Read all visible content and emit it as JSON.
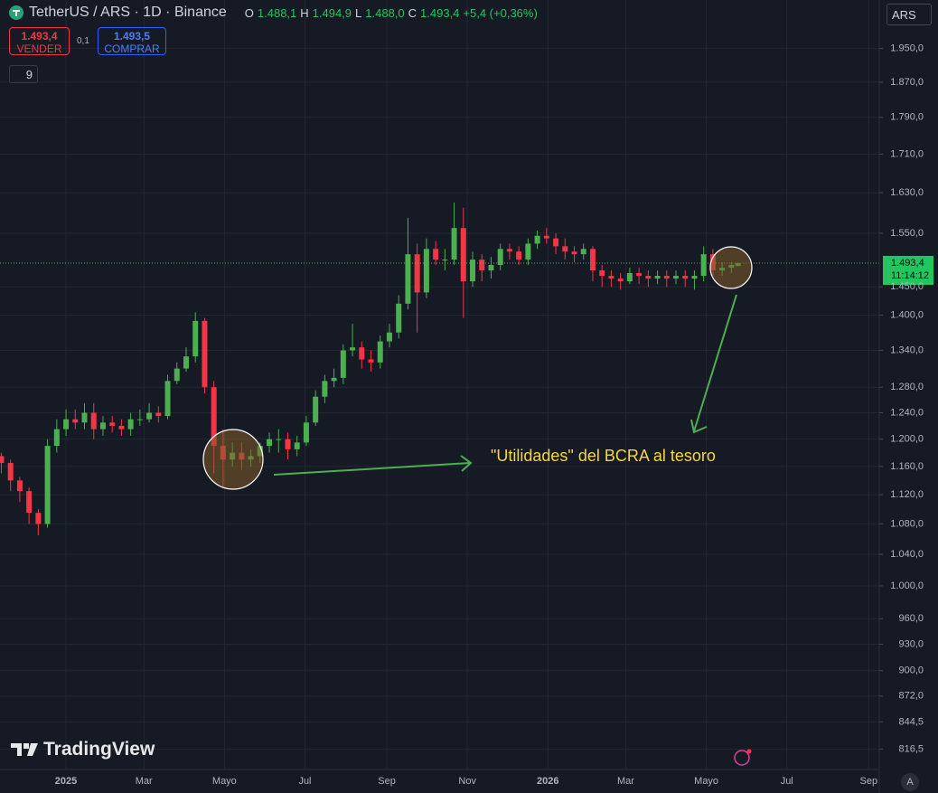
{
  "toolbar": {
    "symbol": "TetherUS / ARS · 1D · Binance",
    "o_label": "O",
    "o_value": "1.488,1",
    "h_label": "H",
    "h_value": "1.494,9",
    "l_label": "L",
    "l_value": "1.488,0",
    "c_label": "C",
    "c_value": "1.493,4",
    "change": "+5,4 (+0,36%)",
    "sell_price": "1.493,4",
    "sell_label": "VENDER",
    "spread": "0,1",
    "buy_price": "1.493,5",
    "buy_label": "COMPRAR",
    "indicators": "9",
    "currency": "ARS",
    "brand": "TradingView",
    "auto": "A"
  },
  "chart_data": {
    "type": "candlestick",
    "log_scale": true,
    "grid": true,
    "up_color": "#4caf50",
    "down_color": "#f23645",
    "annotation": "\"Utilidades\" del BCRA al tesoro",
    "last_price_label": "1.493,4",
    "countdown": "11:14:12",
    "x": [
      -49,
      -42,
      -35,
      -28,
      -21,
      -14,
      -7,
      0,
      7,
      14,
      21,
      28,
      35,
      42,
      49,
      56,
      63,
      70,
      77,
      84,
      91,
      98,
      105,
      112,
      119,
      126,
      133,
      140,
      147,
      154,
      161,
      168,
      175,
      182,
      189,
      196,
      203,
      210,
      217,
      224,
      231,
      238,
      245,
      252,
      259,
      266,
      273,
      280,
      287,
      294,
      301,
      308,
      315,
      322,
      329,
      336,
      343,
      350,
      357,
      364,
      371,
      378,
      385,
      392,
      399,
      406,
      413,
      420,
      427,
      434,
      441,
      448,
      455,
      462,
      469,
      476,
      483,
      490,
      497,
      504,
      509
    ],
    "open": [
      1175,
      1165,
      1140,
      1125,
      1095,
      1080,
      1190,
      1215,
      1230,
      1225,
      1240,
      1215,
      1225,
      1220,
      1215,
      1230,
      1230,
      1240,
      1235,
      1290,
      1310,
      1330,
      1390,
      1280,
      1190,
      1170,
      1180,
      1170,
      1175,
      1190,
      1200,
      1200,
      1185,
      1195,
      1225,
      1265,
      1290,
      1295,
      1340,
      1345,
      1325,
      1320,
      1355,
      1370,
      1420,
      1510,
      1440,
      1520,
      1500,
      1500,
      1560,
      1460,
      1500,
      1480,
      1490,
      1520,
      1515,
      1500,
      1530,
      1545,
      1540,
      1525,
      1515,
      1510,
      1520,
      1480,
      1470,
      1465,
      1460,
      1475,
      1470,
      1465,
      1470,
      1465,
      1470,
      1465,
      1470,
      1510,
      1480,
      1485,
      1488.1
    ],
    "high": [
      1180,
      1170,
      1145,
      1130,
      1100,
      1200,
      1230,
      1245,
      1245,
      1255,
      1255,
      1235,
      1235,
      1230,
      1240,
      1245,
      1255,
      1250,
      1300,
      1320,
      1345,
      1405,
      1395,
      1290,
      1215,
      1195,
      1195,
      1185,
      1195,
      1210,
      1215,
      1210,
      1205,
      1235,
      1275,
      1300,
      1310,
      1350,
      1385,
      1355,
      1340,
      1365,
      1385,
      1435,
      1580,
      1530,
      1540,
      1535,
      1520,
      1610,
      1600,
      1515,
      1510,
      1505,
      1530,
      1530,
      1525,
      1540,
      1555,
      1560,
      1550,
      1540,
      1525,
      1530,
      1525,
      1490,
      1480,
      1475,
      1485,
      1485,
      1480,
      1480,
      1480,
      1480,
      1480,
      1480,
      1525,
      1520,
      1495,
      1495,
      1494.9
    ],
    "low": [
      1150,
      1125,
      1110,
      1080,
      1065,
      1075,
      1180,
      1205,
      1215,
      1215,
      1200,
      1205,
      1210,
      1205,
      1205,
      1220,
      1225,
      1225,
      1230,
      1285,
      1305,
      1320,
      1270,
      1150,
      1130,
      1160,
      1155,
      1160,
      1165,
      1180,
      1180,
      1170,
      1175,
      1190,
      1220,
      1255,
      1280,
      1285,
      1330,
      1310,
      1305,
      1310,
      1345,
      1360,
      1410,
      1370,
      1430,
      1490,
      1480,
      1490,
      1395,
      1450,
      1460,
      1465,
      1480,
      1500,
      1490,
      1490,
      1520,
      1530,
      1510,
      1500,
      1495,
      1500,
      1460,
      1450,
      1450,
      1445,
      1455,
      1455,
      1450,
      1455,
      1450,
      1455,
      1450,
      1445,
      1460,
      1470,
      1470,
      1475,
      1488.0
    ],
    "close": [
      1165,
      1140,
      1125,
      1095,
      1080,
      1190,
      1215,
      1230,
      1225,
      1240,
      1215,
      1225,
      1220,
      1215,
      1230,
      1230,
      1240,
      1235,
      1290,
      1310,
      1330,
      1390,
      1280,
      1190,
      1170,
      1180,
      1170,
      1175,
      1190,
      1200,
      1200,
      1185,
      1195,
      1225,
      1265,
      1290,
      1295,
      1340,
      1345,
      1325,
      1320,
      1355,
      1370,
      1420,
      1510,
      1440,
      1520,
      1500,
      1500,
      1560,
      1460,
      1500,
      1480,
      1490,
      1520,
      1515,
      1500,
      1530,
      1545,
      1540,
      1525,
      1515,
      1510,
      1520,
      1480,
      1470,
      1465,
      1460,
      1475,
      1470,
      1465,
      1470,
      1465,
      1470,
      1465,
      1470,
      1510,
      1480,
      1485,
      1490,
      1493.4
    ],
    "xlim": [
      -50,
      616
    ],
    "xticks": [
      {
        "value": 0,
        "label": "2025"
      },
      {
        "value": 59,
        "label": "Mar"
      },
      {
        "value": 120,
        "label": "Mayo"
      },
      {
        "value": 181,
        "label": "Jul"
      },
      {
        "value": 243,
        "label": "Sep"
      },
      {
        "value": 304,
        "label": "Nov"
      },
      {
        "value": 365,
        "label": "2026"
      },
      {
        "value": 424,
        "label": "Mar"
      },
      {
        "value": 485,
        "label": "Mayo"
      },
      {
        "value": 546,
        "label": "Jul"
      },
      {
        "value": 608,
        "label": "Sep"
      }
    ],
    "ylim": [
      796,
      2071
    ],
    "yticks": [
      {
        "value": 816.5,
        "label": "816,5"
      },
      {
        "value": 844.5,
        "label": "844,5"
      },
      {
        "value": 872,
        "label": "872,0"
      },
      {
        "value": 900,
        "label": "900,0"
      },
      {
        "value": 930,
        "label": "930,0"
      },
      {
        "value": 960,
        "label": "960,0"
      },
      {
        "value": 1000,
        "label": "1.000,0"
      },
      {
        "value": 1040,
        "label": "1.040,0"
      },
      {
        "value": 1080,
        "label": "1.080,0"
      },
      {
        "value": 1120,
        "label": "1.120,0"
      },
      {
        "value": 1160,
        "label": "1.160,0"
      },
      {
        "value": 1200,
        "label": "1.200,0"
      },
      {
        "value": 1240,
        "label": "1.240,0"
      },
      {
        "value": 1280,
        "label": "1.280,0"
      },
      {
        "value": 1340,
        "label": "1.340,0"
      },
      {
        "value": 1400,
        "label": "1.400,0"
      },
      {
        "value": 1450,
        "label": "1.450,0"
      },
      {
        "value": 1550,
        "label": "1.550,0"
      },
      {
        "value": 1630,
        "label": "1.630,0"
      },
      {
        "value": 1710,
        "label": "1.710,0"
      },
      {
        "value": 1790,
        "label": "1.790,0"
      },
      {
        "value": 1870,
        "label": "1.870,0"
      },
      {
        "value": 1950,
        "label": "1.950,0"
      }
    ]
  }
}
